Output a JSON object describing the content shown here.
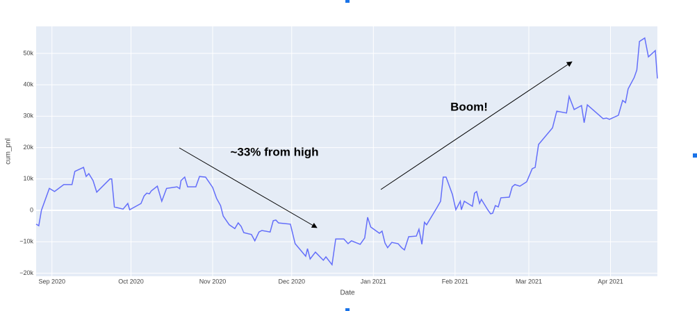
{
  "chart_data": {
    "type": "line",
    "x_label": "Date",
    "y_label": "cum_pnl",
    "annotations": [
      "~33% from high",
      "Boom!"
    ],
    "color": "#636efa",
    "x": [
      -6,
      -5,
      -4,
      -1,
      1,
      4.5,
      7.6,
      8.7,
      12,
      13,
      14,
      15.6,
      17,
      22,
      22.7,
      23.7,
      27,
      28.8,
      29.5,
      33.8,
      35,
      36,
      37,
      37.7,
      40,
      41.7,
      43.5,
      47.5,
      48.5,
      49,
      50.4,
      51.5,
      54.6,
      56,
      58.3,
      61,
      62.5,
      64,
      65,
      67.3,
      69.4,
      70.7,
      71.8,
      72.8,
      75.7,
      77,
      78.6,
      79.7,
      82.8,
      84,
      85,
      86,
      90.5,
      92.3,
      94.5,
      96.3,
      97,
      98,
      100,
      103,
      104,
      106.3,
      107.7,
      110.8,
      112.4,
      113.7,
      117,
      118.7,
      119.8,
      121,
      124.3,
      125.3,
      126.4,
      127.4,
      129,
      131.4,
      132.7,
      133.8,
      135.4,
      138.3,
      139.3,
      140.4,
      141.4,
      142.2,
      146,
      147.5,
      148.5,
      149.6,
      152,
      153.3,
      155,
      155.4,
      156.5,
      159.6,
      160.4,
      161.2,
      162.3,
      163,
      165.4,
      166.5,
      167.3,
      168.3,
      169.4,
      170.4,
      173.6,
      174.7,
      175.7,
      177.6,
      180.2,
      182.3,
      183.4,
      184.7,
      190,
      191.6,
      195.3,
      196.3,
      198.2,
      201,
      202,
      203.2,
      209.2,
      210.5,
      211.6,
      215,
      216.6,
      217.7,
      218.7,
      221,
      222,
      223,
      225,
      226.4,
      229,
      229.8
    ],
    "values": [
      -4400,
      -4900,
      0,
      7000,
      6000,
      8200,
      8200,
      12400,
      13700,
      10800,
      11700,
      9500,
      5800,
      10000,
      10000,
      1100,
      400,
      2200,
      200,
      2200,
      4600,
      5500,
      5300,
      6200,
      7700,
      2900,
      7000,
      7500,
      6900,
      9500,
      10600,
      7500,
      7500,
      10800,
      10600,
      7300,
      3800,
      1500,
      -1800,
      -4600,
      -5800,
      -4000,
      -5100,
      -7100,
      -7700,
      -9700,
      -6900,
      -6400,
      -6900,
      -3300,
      -3100,
      -4000,
      -4400,
      -10600,
      -12800,
      -14600,
      -12200,
      -15500,
      -13300,
      -15900,
      -14800,
      -17300,
      -9100,
      -9100,
      -10600,
      -9700,
      -10800,
      -8800,
      -2200,
      -5300,
      -7300,
      -6600,
      -10400,
      -11900,
      -10200,
      -10600,
      -11900,
      -12600,
      -8400,
      -8200,
      -6000,
      -10800,
      -3800,
      -4600,
      700,
      2900,
      10600,
      10600,
      5100,
      200,
      2900,
      200,
      2900,
      1300,
      5500,
      6000,
      2200,
      3500,
      200,
      -1100,
      -900,
      1500,
      1100,
      4000,
      4200,
      7500,
      8200,
      7700,
      9100,
      13300,
      13700,
      21000,
      26300,
      31600,
      31000,
      36300,
      32100,
      33400,
      27900,
      33600,
      29200,
      29400,
      29000,
      30300,
      35000,
      34300,
      38700,
      42300,
      44700,
      53800,
      54900,
      48900,
      50900,
      42000
    ],
    "xlim": [
      -6,
      229.8
    ],
    "xticks": [
      {
        "value": 0,
        "label": "Sep 2020"
      },
      {
        "value": 30,
        "label": "Oct 2020"
      },
      {
        "value": 61,
        "label": "Nov 2020"
      },
      {
        "value": 91,
        "label": "Dec 2020"
      },
      {
        "value": 122,
        "label": "Jan 2021"
      },
      {
        "value": 153,
        "label": "Feb 2021"
      },
      {
        "value": 181,
        "label": "Mar 2021"
      },
      {
        "value": 212,
        "label": "Apr 2021"
      }
    ],
    "ylim": [
      -21000,
      58600
    ],
    "yticks": [
      {
        "value": -20000,
        "label": "−20k"
      },
      {
        "value": -10000,
        "label": "−10k"
      },
      0,
      {
        "value": 10000,
        "label": "10k"
      },
      {
        "value": 20000,
        "label": "20k"
      },
      {
        "value": 30000,
        "label": "30k"
      },
      {
        "value": 40000,
        "label": "40k"
      },
      {
        "value": 50000,
        "label": "50k"
      }
    ],
    "grid": true
  }
}
